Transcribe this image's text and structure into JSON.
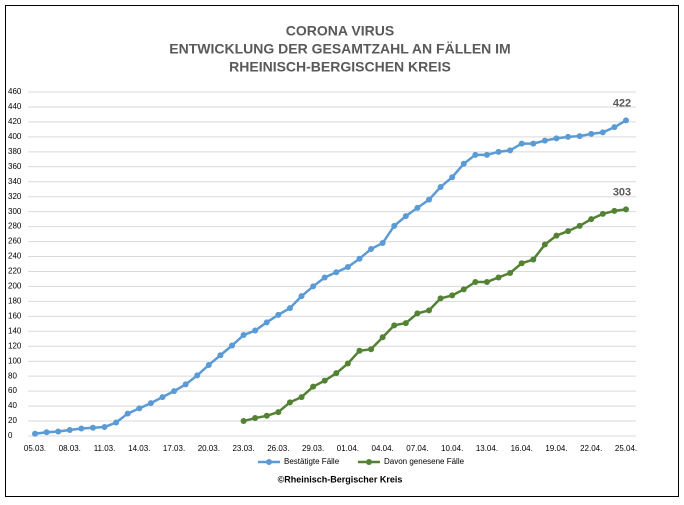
{
  "chart_data": {
    "type": "line",
    "title": [
      "CORONA VIRUS",
      "ENTWICKLUNG DER GESAMTZAHL AN FÄLLEN IM",
      "RHEINISCH-BERGISCHEN KREIS"
    ],
    "categories": [
      "05.03.",
      null,
      null,
      "08.03.",
      null,
      null,
      "11.03.",
      null,
      null,
      "14.03.",
      null,
      null,
      "17.03.",
      null,
      null,
      "20.03.",
      null,
      null,
      "23.03.",
      null,
      null,
      "26.03.",
      null,
      null,
      "29.03.",
      null,
      null,
      "01.04.",
      null,
      null,
      "04.04.",
      null,
      null,
      "07.04.",
      null,
      null,
      "10.04.",
      null,
      null,
      "13.04.",
      null,
      null,
      "16.04.",
      null,
      null,
      "19.04.",
      null,
      null,
      "22.04.",
      null,
      null,
      "25.04."
    ],
    "series": [
      {
        "name": "Bestätigte Fälle",
        "color": "#5b9bd5",
        "values": [
          3,
          5,
          6,
          8,
          10,
          11,
          12,
          18,
          30,
          37,
          44,
          52,
          60,
          69,
          81,
          95,
          108,
          121,
          135,
          141,
          152,
          162,
          171,
          187,
          200,
          212,
          219,
          226,
          237,
          250,
          258,
          281,
          294,
          305,
          316,
          333,
          346,
          364,
          376,
          376,
          380,
          382,
          391,
          391,
          395,
          398,
          400,
          401,
          404,
          406,
          413,
          422
        ]
      },
      {
        "name": "Davon genesene Fälle",
        "color": "#548235",
        "values": [
          null,
          null,
          null,
          null,
          null,
          null,
          null,
          null,
          null,
          null,
          null,
          null,
          null,
          null,
          null,
          null,
          null,
          null,
          20,
          24,
          27,
          32,
          45,
          52,
          66,
          74,
          84,
          97,
          114,
          116,
          132,
          148,
          151,
          164,
          168,
          184,
          188,
          196,
          206,
          206,
          212,
          218,
          231,
          236,
          256,
          268,
          274,
          281,
          290,
          297,
          301,
          303
        ]
      }
    ],
    "ylim": [
      0,
      460
    ],
    "yticks": [
      0,
      20,
      40,
      60,
      80,
      100,
      120,
      140,
      160,
      180,
      200,
      220,
      240,
      260,
      280,
      300,
      320,
      340,
      360,
      380,
      400,
      420,
      440,
      460
    ],
    "grid": true,
    "legend": "bottom",
    "source": "©Rheinisch-Bergischer Kreis"
  }
}
